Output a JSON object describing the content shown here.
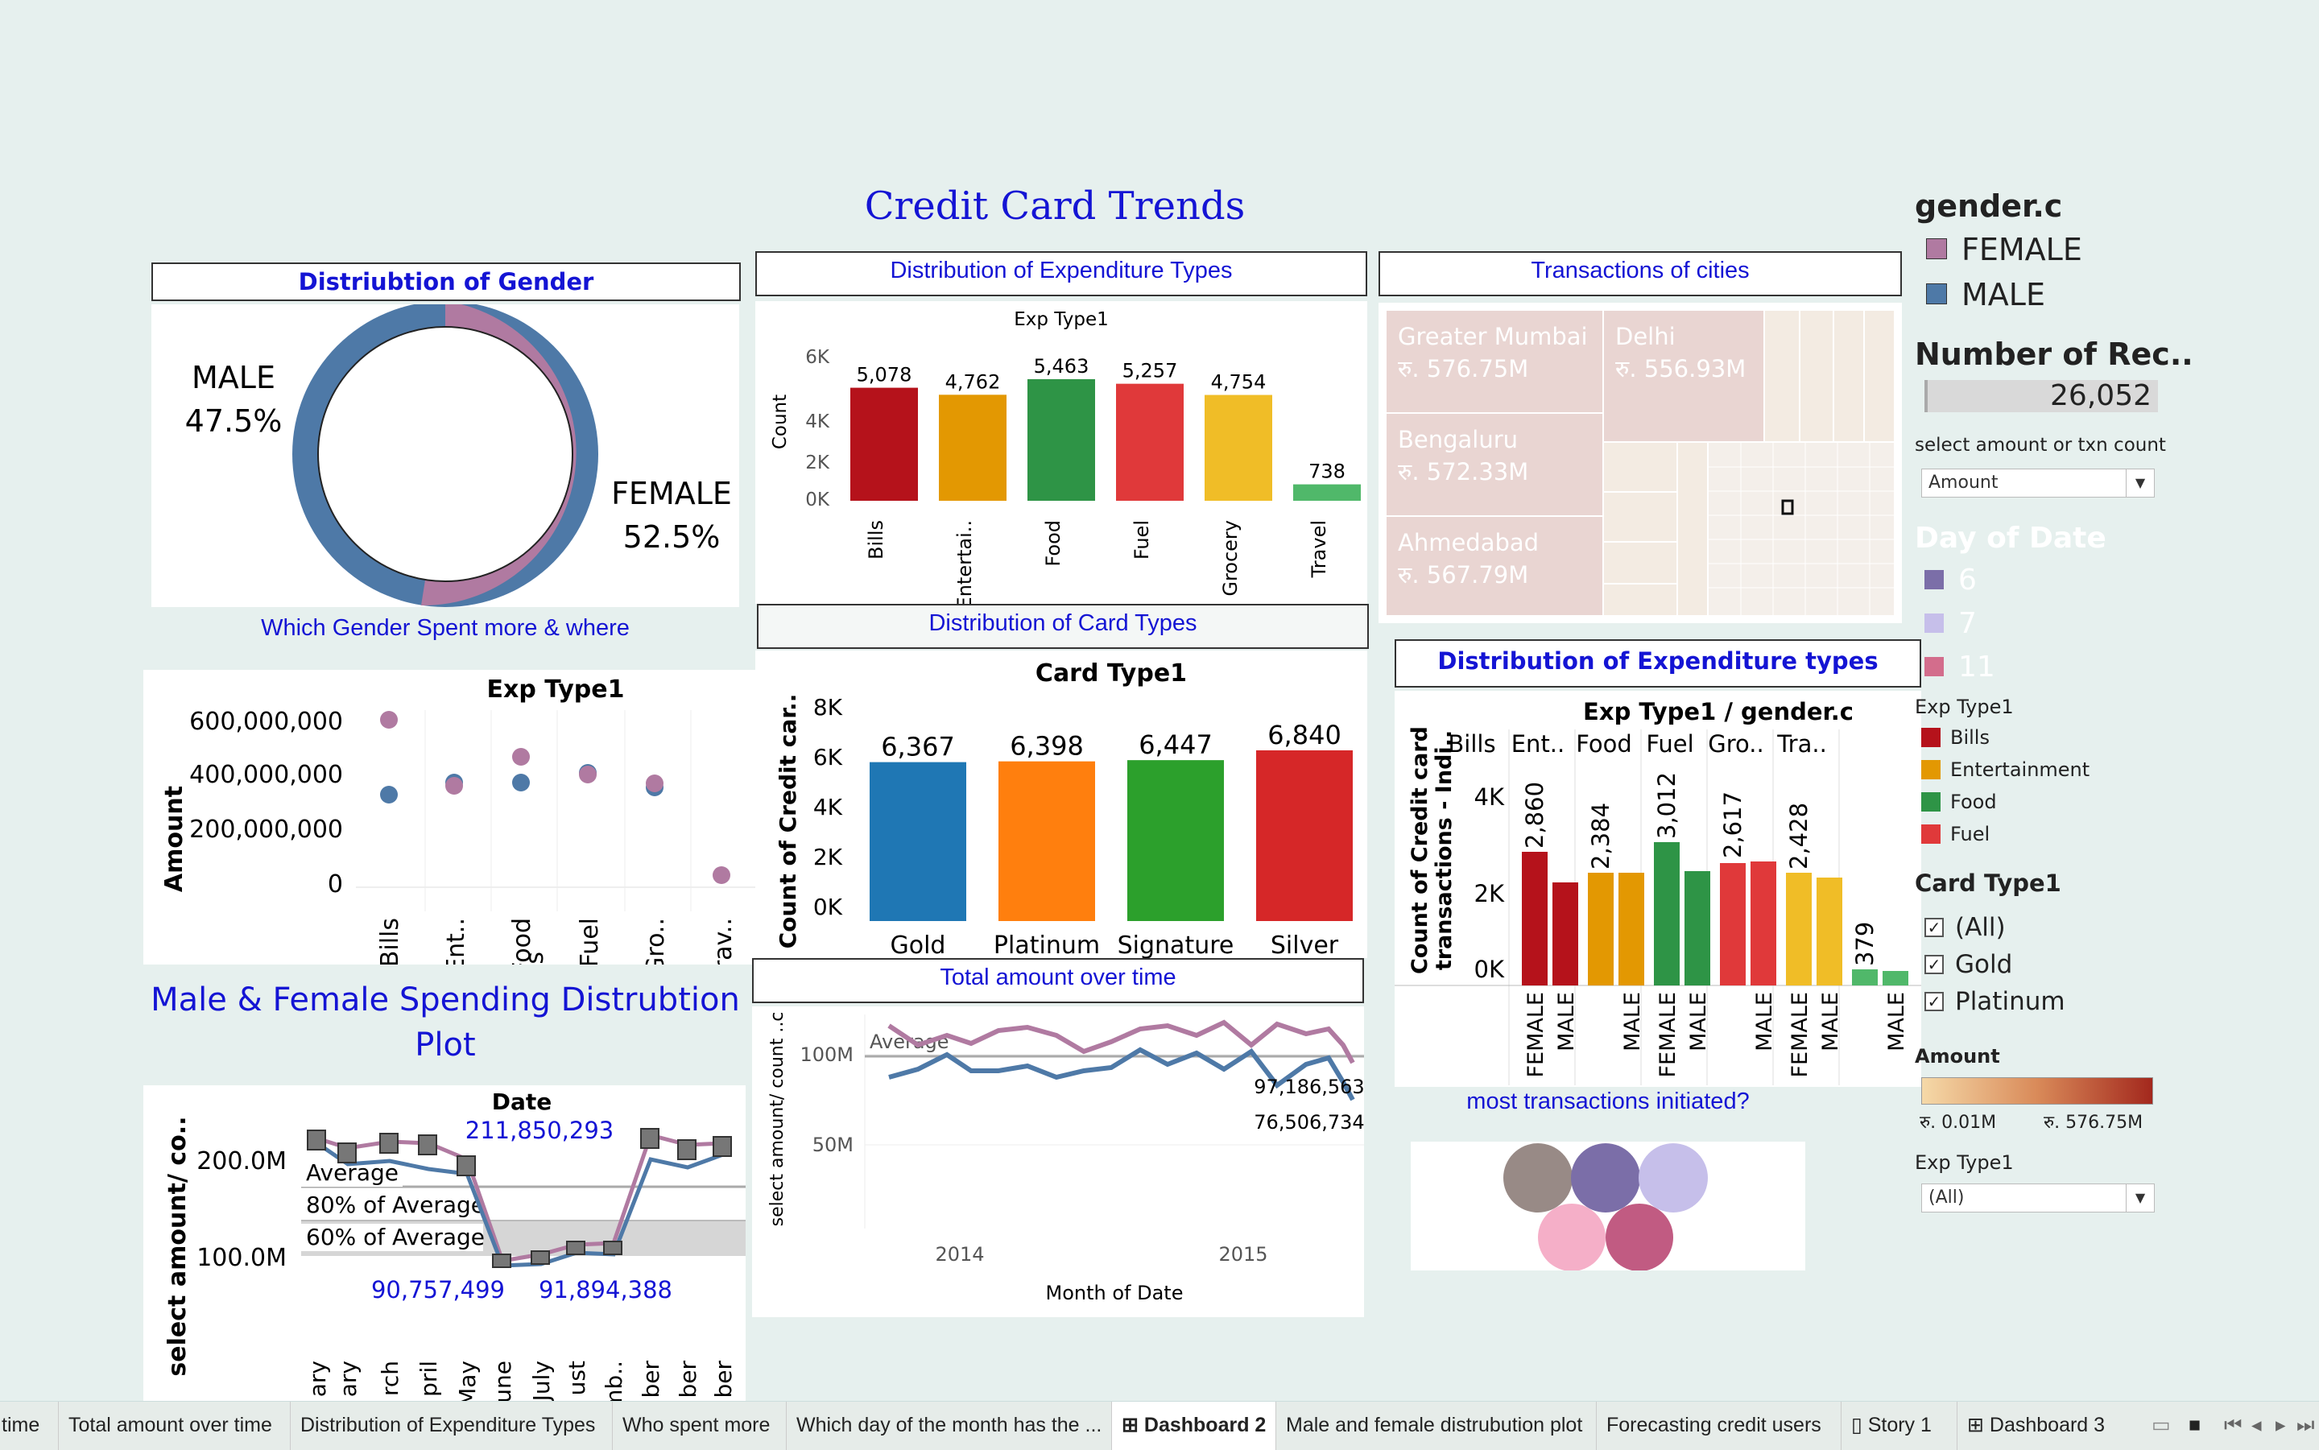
{
  "dashboard": {
    "title": "Credit Card Trends",
    "gender_panel": {
      "title": "Distriubtion of Gender",
      "male_label": "MALE",
      "male_pct": "47.5%",
      "female_label": "FEMALE",
      "female_pct": "52.5%",
      "colors": {
        "male": "#4e79a7",
        "female": "#b07aa1"
      }
    },
    "which_gender_caption": "Which Gender Spent more & where",
    "scatter_panel": {
      "header": "Exp Type1",
      "ylabel": "Amount",
      "yticks": [
        "600,000,000",
        "400,000,000",
        "200,000,000",
        "0"
      ],
      "categories": [
        "Bills",
        "Ent..",
        "Food",
        "Fuel",
        "Gro..",
        "Trav.."
      ]
    },
    "spending_plot_title_1": "Male & Female Spending Distrubtion",
    "spending_plot_title_2": "Plot",
    "date_panel": {
      "header": "Date",
      "ylabel": "select amount/ co..",
      "yticks": [
        "200.0M",
        "100.0M"
      ],
      "ref_average": "Average",
      "ref_80": "80% of Average",
      "ref_60": "60% of Average",
      "max_label": "211,850,293",
      "min_label_1": "90,757,499",
      "min_label_2": "91,894,388",
      "x_labels": [
        "ary",
        "ary",
        "rch",
        "pril",
        "May",
        "une",
        "July",
        "ust",
        "mb..",
        "ber",
        "ber",
        "ber"
      ]
    },
    "exp_dist_panel": {
      "title": "Distribution of Expenditure Types",
      "header": "Exp Type1",
      "ylabel": "Count",
      "yticks": [
        "6K",
        "4K",
        "2K",
        "0K"
      ],
      "categories": [
        "Bills",
        "Entertai..",
        "Food",
        "Fuel",
        "Grocery",
        "Travel"
      ],
      "value_labels": [
        "5,078",
        "4,762",
        "5,463",
        "5,257",
        "4,754",
        "738"
      ],
      "colors": [
        "#b5121b",
        "#e39802",
        "#2e9446",
        "#e0393a",
        "#f0bd27",
        "#50b86a"
      ]
    },
    "card_types_panel": {
      "title": "Distribution of Card Types",
      "header": "Card Type1",
      "ylabel": "Count of Credit car..",
      "yticks": [
        "8K",
        "6K",
        "4K",
        "2K",
        "0K"
      ],
      "categories": [
        "Gold",
        "Platinum",
        "Signature",
        "Silver"
      ],
      "value_labels": [
        "6,367",
        "6,398",
        "6,447",
        "6,840"
      ],
      "colors": [
        "#1f77b4",
        "#ff7f0e",
        "#2ca02c",
        "#d62728"
      ]
    },
    "total_time_panel": {
      "title": "Total amount over time",
      "ylabel": "select amount/ count ..c",
      "yticks": [
        "100M",
        "50M"
      ],
      "xlabel": "Month of Date",
      "xticks": [
        "2014",
        "2015"
      ],
      "ref_average": "Average",
      "end_label_1": "97,186,563",
      "end_label_2": "76,506,734"
    },
    "cities_panel": {
      "title": "Transactions  of cities",
      "cities": [
        {
          "name": "Greater Mumbai",
          "amount": "रु. 576.75M"
        },
        {
          "name": "Delhi",
          "amount": "रु. 556.93M"
        },
        {
          "name": "Bengaluru",
          "amount": "रु. 572.33M"
        },
        {
          "name": "Ahmedabad",
          "amount": "रु. 567.79M"
        }
      ]
    },
    "exp_gender_panel": {
      "title": "Distribution of Expenditure types",
      "header": "Exp Type1 / gender.c",
      "categories": [
        "Bills",
        "Ent..",
        "Food",
        "Fuel",
        "Gro..",
        "Tra.."
      ],
      "ylabel_1": "Count of Credit card",
      "ylabel_2": "transactions - Indi..",
      "yticks": [
        "4K",
        "2K",
        "0K"
      ],
      "value_labels": [
        "2,860",
        "2,384",
        "3,012",
        "2,617",
        "2,428",
        "379"
      ],
      "gender_labels": [
        "FEMALE",
        "MALE",
        "MALE",
        "FEMALE",
        "MALE",
        "MALE",
        "FEMALE",
        "MALE",
        "MALE"
      ]
    },
    "most_txn_caption": "most transactions initiated?"
  },
  "sidebar": {
    "gender_title": "gender.c",
    "gender_items": [
      "FEMALE",
      "MALE"
    ],
    "num_records_title": "Number of Rec..",
    "num_records_value": "26,052",
    "select_label": "select amount or txn count",
    "select_value": "Amount",
    "day_title": "Day of Date",
    "day_items": [
      "6",
      "7",
      "11"
    ],
    "day_colors": [
      "#7b6ea8",
      "#c6bfea",
      "#d36d8c"
    ],
    "exp_title": "Exp Type1",
    "exp_items": [
      "Bills",
      "Entertainment",
      "Food",
      "Fuel"
    ],
    "card_title": "Card Type1",
    "card_items": [
      "(All)",
      "Gold",
      "Platinum"
    ],
    "amount_title": "Amount",
    "amount_min": "रु. 0.01M",
    "amount_max": "रु. 576.75M",
    "exp_filter_title": "Exp Type1",
    "exp_filter_value": "(All)"
  },
  "tabs": [
    "time",
    "Total amount over time",
    "Distribution of Expenditure Types",
    "Who spent more",
    "Which day of the month has the ...",
    "Dashboard 2",
    "Male and female distrubution plot",
    "Forecasting credit users",
    "Story 1",
    "Dashboard 3"
  ]
}
